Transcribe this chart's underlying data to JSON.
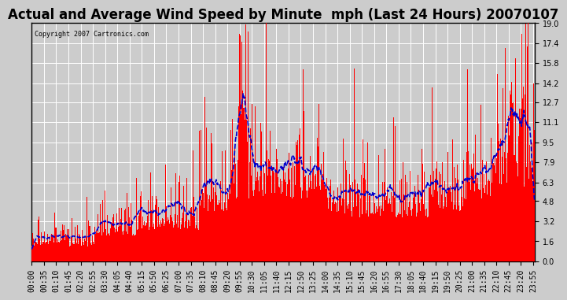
{
  "title": "Actual and Average Wind Speed by Minute  mph (Last 24 Hours) 20070107",
  "copyright": "Copyright 2007 Cartronics.com",
  "yticks": [
    0.0,
    1.6,
    3.2,
    4.8,
    6.3,
    7.9,
    9.5,
    11.1,
    12.7,
    14.2,
    15.8,
    17.4,
    19.0
  ],
  "ymax": 19.0,
  "ymin": 0.0,
  "bar_color": "#FF0000",
  "line_color": "#0000CC",
  "background_color": "#CCCCCC",
  "grid_color": "#FFFFFF",
  "title_fontsize": 12,
  "tick_fontsize": 7
}
